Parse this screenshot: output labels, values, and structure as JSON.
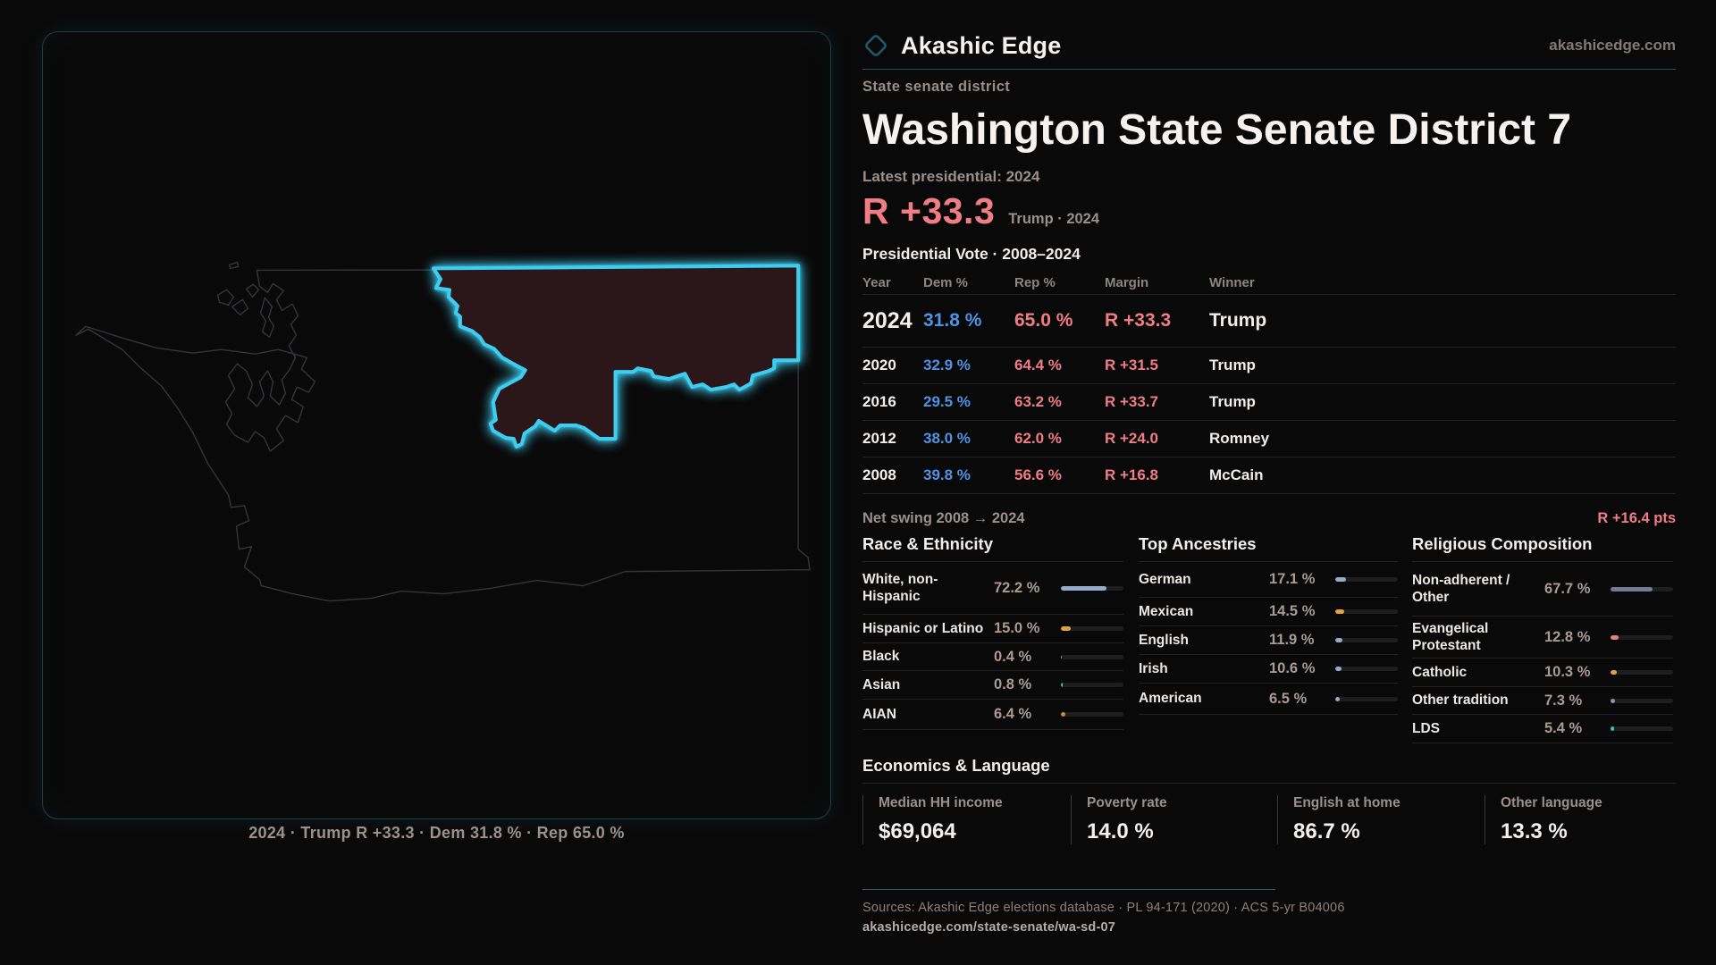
{
  "brand": {
    "name": "Akashic Edge",
    "site": "akashicedge.com",
    "icon": "diamond-outline"
  },
  "page": {
    "kicker": "State senate district",
    "title": "Washington State Senate District 7",
    "latest_label": "Latest presidential: 2024",
    "headline_margin": "R +33.3",
    "headline_sub": "Trump · 2024"
  },
  "map": {
    "caption": "2024 · Trump R +33.3 · Dem 31.8 % · Rep 65.0 %",
    "state": "Washington",
    "highlighted_district": "State Senate District 7 (northeast Washington)",
    "district_outline_color": "#3ecdf0",
    "district_fill_color": "#2b171a"
  },
  "vote_table": {
    "title": "Presidential Vote · 2008–2024",
    "columns": [
      "Year",
      "Dem %",
      "Rep %",
      "Margin",
      "Winner"
    ],
    "rows": [
      {
        "year": "2024",
        "dem": "31.8 %",
        "rep": "65.0 %",
        "margin": "R +33.3",
        "winner": "Trump"
      },
      {
        "year": "2020",
        "dem": "32.9 %",
        "rep": "64.4 %",
        "margin": "R +31.5",
        "winner": "Trump"
      },
      {
        "year": "2016",
        "dem": "29.5 %",
        "rep": "63.2 %",
        "margin": "R +33.7",
        "winner": "Trump"
      },
      {
        "year": "2012",
        "dem": "38.0 %",
        "rep": "62.0 %",
        "margin": "R +24.0",
        "winner": "Romney"
      },
      {
        "year": "2008",
        "dem": "39.8 %",
        "rep": "56.6 %",
        "margin": "R +16.8",
        "winner": "McCain"
      }
    ],
    "net_swing_label": "Net swing 2008 → 2024",
    "net_swing_value": "R +16.4 pts"
  },
  "demographics": [
    {
      "title": "Race & Ethnicity",
      "rows": [
        {
          "label": "White, non-Hispanic",
          "value": "72.2 %",
          "pct": 72.2,
          "color": "#96abc9"
        },
        {
          "label": "Hispanic or Latino",
          "value": "15.0 %",
          "pct": 15.0,
          "color": "#e6a23c"
        },
        {
          "label": "Black",
          "value": "0.4 %",
          "pct": 0.4,
          "color": "#8d9aab"
        },
        {
          "label": "Asian",
          "value": "0.8 %",
          "pct": 0.8,
          "color": "#34d3a8"
        },
        {
          "label": "AIAN",
          "value": "6.4 %",
          "pct": 6.4,
          "color": "#cf8a2e"
        }
      ]
    },
    {
      "title": "Top Ancestries",
      "rows": [
        {
          "label": "German",
          "value": "17.1 %",
          "pct": 17.1,
          "color": "#96abc9"
        },
        {
          "label": "Mexican",
          "value": "14.5 %",
          "pct": 14.5,
          "color": "#e6a23c"
        },
        {
          "label": "English",
          "value": "11.9 %",
          "pct": 11.9,
          "color": "#96abc9"
        },
        {
          "label": "Irish",
          "value": "10.6 %",
          "pct": 10.6,
          "color": "#96abc9"
        },
        {
          "label": "American",
          "value": "6.5 %",
          "pct": 6.5,
          "color": "#96abc9"
        }
      ]
    },
    {
      "title": "Religious Composition",
      "rows": [
        {
          "label": "Non-adherent / Other",
          "value": "67.7 %",
          "pct": 67.7,
          "color": "#6f7d94"
        },
        {
          "label": "Evangelical Protestant",
          "value": "12.8 %",
          "pct": 12.8,
          "color": "#e87d82"
        },
        {
          "label": "Catholic",
          "value": "10.3 %",
          "pct": 10.3,
          "color": "#e0a33c"
        },
        {
          "label": "Other tradition",
          "value": "7.3 %",
          "pct": 7.3,
          "color": "#8d9aab"
        },
        {
          "label": "LDS",
          "value": "5.4 %",
          "pct": 5.4,
          "color": "#2fc9b9"
        }
      ]
    }
  ],
  "economics": {
    "title": "Economics & Language",
    "stats": [
      {
        "label": "Median HH income",
        "value": "$69,064"
      },
      {
        "label": "Poverty rate",
        "value": "14.0 %"
      },
      {
        "label": "English at home",
        "value": "86.7 %"
      },
      {
        "label": "Other language",
        "value": "13.3 %"
      }
    ]
  },
  "footer": {
    "sources": "Sources: Akashic Edge elections database · PL 94-171 (2020) · ACS 5-yr B04006",
    "permalink": "akashicedge.com/state-senate/wa-sd-07"
  },
  "colors": {
    "background": "#0a0909",
    "dem_blue": "#4f93e6",
    "rep_red": "#ef7d83",
    "accent_cyan": "#3ecdf0",
    "teal_divider": "#1e4d5c",
    "text_white": "#f3f0ed",
    "text_gray": "#9a908b"
  },
  "chart_data": [
    {
      "type": "table",
      "title": "Presidential Vote · 2008–2024",
      "columns": [
        "Year",
        "Dem %",
        "Rep %",
        "Margin",
        "Winner"
      ],
      "rows": [
        [
          "2024",
          31.8,
          65.0,
          "R +33.3",
          "Trump"
        ],
        [
          "2020",
          32.9,
          64.4,
          "R +31.5",
          "Trump"
        ],
        [
          "2016",
          29.5,
          63.2,
          "R +33.7",
          "Trump"
        ],
        [
          "2012",
          38.0,
          62.0,
          "R +24.0",
          "Romney"
        ],
        [
          "2008",
          39.8,
          56.6,
          "R +16.8",
          "McCain"
        ]
      ],
      "footer": {
        "label": "Net swing 2008 → 2024",
        "value": "R +16.4 pts"
      }
    },
    {
      "type": "bar",
      "title": "Race & Ethnicity",
      "categories": [
        "White, non-Hispanic",
        "Hispanic or Latino",
        "Black",
        "Asian",
        "AIAN"
      ],
      "values": [
        72.2,
        15.0,
        0.4,
        0.8,
        6.4
      ],
      "unit": "%",
      "xlim": [
        0,
        100
      ]
    },
    {
      "type": "bar",
      "title": "Top Ancestries",
      "categories": [
        "German",
        "Mexican",
        "English",
        "Irish",
        "American"
      ],
      "values": [
        17.1,
        14.5,
        11.9,
        10.6,
        6.5
      ],
      "unit": "%",
      "xlim": [
        0,
        100
      ]
    },
    {
      "type": "bar",
      "title": "Religious Composition",
      "categories": [
        "Non-adherent / Other",
        "Evangelical Protestant",
        "Catholic",
        "Other tradition",
        "LDS"
      ],
      "values": [
        67.7,
        12.8,
        10.3,
        7.3,
        5.4
      ],
      "unit": "%",
      "xlim": [
        0,
        100
      ]
    },
    {
      "type": "table",
      "title": "Economics & Language",
      "columns": [
        "Median HH income",
        "Poverty rate",
        "English at home",
        "Other language"
      ],
      "rows": [
        [
          "$69,064",
          "14.0 %",
          "86.7 %",
          "13.3 %"
        ]
      ]
    }
  ]
}
